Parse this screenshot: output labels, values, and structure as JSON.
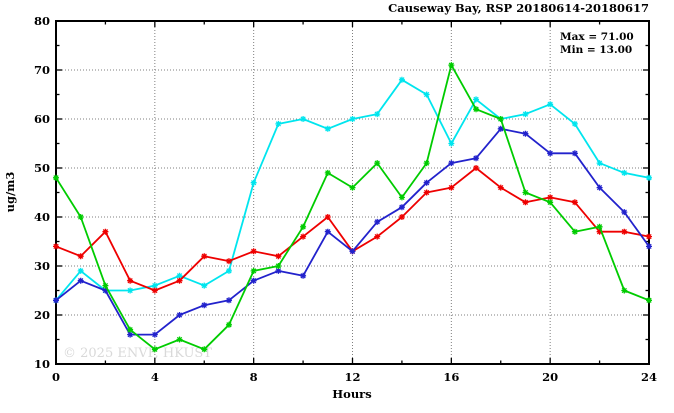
{
  "chart_data": {
    "type": "line",
    "title": "Causeway Bay, RSP 20180614-20180617",
    "annotations": {
      "max": "Max = 71.00",
      "min": "Min = 13.00"
    },
    "xlabel": "Hours",
    "ylabel": "ug/m3",
    "watermark": "© 2025 ENVF, HKUST",
    "xlim": [
      0,
      24
    ],
    "ylim": [
      10,
      80
    ],
    "x_major_ticks": [
      0,
      4,
      8,
      12,
      16,
      20,
      24
    ],
    "x_minor_ticks": [
      2,
      6,
      10,
      14,
      18,
      22
    ],
    "y_major_ticks": [
      10,
      20,
      30,
      40,
      50,
      60,
      70,
      80
    ],
    "y_minor_ticks": [
      15,
      25,
      35,
      45,
      55,
      65,
      75
    ],
    "x_grid": [
      4,
      8,
      12,
      16,
      20
    ],
    "y_grid": [
      20,
      30,
      40,
      50,
      60,
      70
    ],
    "legend": "none",
    "x": [
      0,
      1,
      2,
      3,
      4,
      5,
      6,
      7,
      8,
      9,
      10,
      11,
      12,
      13,
      14,
      15,
      16,
      17,
      18,
      19,
      20,
      21,
      22,
      23,
      24
    ],
    "series": [
      {
        "name": "cyan-line",
        "color": "#00E5EE",
        "values": [
          23,
          29,
          25,
          25,
          26,
          28,
          26,
          29,
          47,
          59,
          60,
          58,
          60,
          61,
          68,
          65,
          55,
          64,
          60,
          61,
          63,
          59,
          51,
          49,
          48
        ]
      },
      {
        "name": "red-line",
        "color": "#EE0000",
        "values": [
          34,
          32,
          37,
          27,
          25,
          27,
          32,
          31,
          33,
          32,
          36,
          40,
          33,
          36,
          40,
          45,
          46,
          50,
          46,
          43,
          44,
          43,
          37,
          37,
          36
        ]
      },
      {
        "name": "blue-line",
        "color": "#2222CC",
        "values": [
          23,
          27,
          25,
          16,
          16,
          20,
          22,
          23,
          27,
          29,
          28,
          37,
          33,
          39,
          42,
          47,
          51,
          52,
          58,
          57,
          53,
          53,
          46,
          41,
          34
        ]
      },
      {
        "name": "green-line",
        "color": "#00CC00",
        "values": [
          48,
          40,
          26,
          17,
          13,
          15,
          13,
          18,
          29,
          30,
          38,
          49,
          46,
          51,
          44,
          51,
          71,
          62,
          60,
          45,
          43,
          37,
          38,
          25,
          23
        ]
      }
    ],
    "colors": {
      "axis": "#000000",
      "grid": "#7F7F7F",
      "watermark": "#D9D9D9",
      "background": "#FFFFFF"
    }
  }
}
